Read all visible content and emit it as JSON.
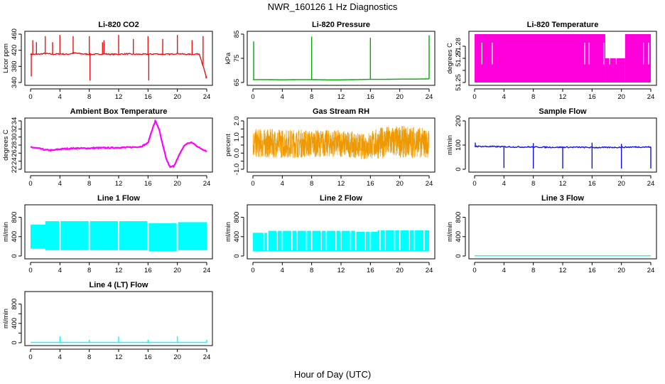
{
  "figure": {
    "title": "NWR_160126  1 Hz Diagnostics",
    "xlabel": "Hour of Day (UTC)"
  },
  "chart_data": [
    {
      "type": "line",
      "title": "Li-820 CO2",
      "ylabel": "Licor ppm",
      "color": "#ee1111",
      "xlim": [
        0,
        24
      ],
      "ylim": [
        340,
        460
      ],
      "xticks": [
        0,
        4,
        8,
        12,
        16,
        20,
        24
      ],
      "yticks": [
        340,
        380,
        420,
        460
      ],
      "series": [
        {
          "x": [
            0,
            1,
            2,
            3,
            4,
            5,
            6,
            7,
            8,
            9,
            10,
            11,
            12,
            13,
            14,
            15,
            16,
            17,
            18,
            19,
            20,
            21,
            22,
            23,
            24
          ],
          "y": [
            410,
            410,
            412,
            410,
            411,
            410,
            413,
            411,
            410,
            410,
            411,
            410,
            410,
            411,
            410,
            410,
            410,
            411,
            410,
            410,
            412,
            410,
            410,
            411,
            350
          ]
        }
      ],
      "spikes": [
        [
          0.1,
          355
        ],
        [
          0.3,
          445
        ],
        [
          0.8,
          440
        ],
        [
          2.0,
          455
        ],
        [
          3.0,
          440
        ],
        [
          4.0,
          458
        ],
        [
          5.8,
          455
        ],
        [
          8.0,
          455
        ],
        [
          8.1,
          345
        ],
        [
          9.8,
          440
        ],
        [
          10.0,
          445
        ],
        [
          12.0,
          458
        ],
        [
          14.0,
          448
        ],
        [
          16.0,
          455
        ],
        [
          16.1,
          345
        ],
        [
          18.0,
          448
        ],
        [
          20.0,
          458
        ],
        [
          22.0,
          445
        ],
        [
          23.5,
          455
        ],
        [
          23.9,
          350
        ]
      ]
    },
    {
      "type": "line",
      "title": "Li-820 Pressure",
      "ylabel": "kPa",
      "color": "#00aa00",
      "xlim": [
        0,
        24
      ],
      "ylim": [
        65,
        85
      ],
      "xticks": [
        0,
        4,
        8,
        12,
        16,
        20,
        24
      ],
      "yticks": [
        65,
        75,
        85
      ],
      "series": [
        {
          "x": [
            0,
            2,
            4,
            6,
            8,
            10,
            12,
            14,
            16,
            18,
            20,
            22,
            24
          ],
          "y": [
            66.2,
            66.2,
            66.1,
            66.2,
            66.2,
            66.1,
            66.1,
            66.2,
            66.3,
            66.3,
            66.4,
            66.4,
            66.5
          ]
        }
      ],
      "spikes": [
        [
          0.1,
          82.0
        ],
        [
          8.0,
          84.0
        ],
        [
          16.0,
          83.5
        ],
        [
          24.0,
          84.5
        ]
      ]
    },
    {
      "type": "area",
      "title": "Li-820 Temperature",
      "ylabel": "degrees C",
      "color": "#ff00dd",
      "xlim": [
        0,
        24
      ],
      "ylim": [
        51.25,
        51.29
      ],
      "xticks": [
        0,
        4,
        8,
        12,
        16,
        20,
        24
      ],
      "yticks": [
        51.25,
        51.26,
        51.27,
        51.28
      ],
      "ytick_labels": [
        "51.25",
        "",
        "51.27",
        "51.28"
      ],
      "bands": [
        [
          0,
          17.8,
          51.25,
          51.29
        ],
        [
          17.8,
          20.5,
          51.25,
          51.27
        ],
        [
          20.5,
          24,
          51.25,
          51.29
        ]
      ]
    },
    {
      "type": "line",
      "title": "Ambient Box Temperature",
      "ylabel": "degrees C",
      "color": "#ff00ff",
      "xlim": [
        0,
        24
      ],
      "ylim": [
        22,
        34
      ],
      "xticks": [
        0,
        4,
        8,
        12,
        16,
        20,
        24
      ],
      "yticks": [
        22,
        24,
        26,
        28,
        30,
        32,
        34
      ],
      "series": [
        {
          "x": [
            0,
            1,
            2,
            3,
            4,
            5,
            6,
            7,
            8,
            9,
            10,
            11,
            12,
            13,
            14,
            15,
            16,
            16.5,
            17,
            17.5,
            18,
            18.5,
            19,
            19.5,
            20,
            20.5,
            21,
            21.5,
            22,
            22.5,
            23,
            24
          ],
          "y": [
            27.5,
            27.2,
            26.8,
            26.7,
            27.0,
            27.1,
            27.2,
            27.2,
            27.2,
            27.3,
            27.3,
            27.3,
            27.4,
            27.4,
            27.5,
            27.6,
            28.5,
            31.5,
            34.0,
            32.0,
            28.0,
            24.5,
            22.5,
            22.8,
            24.5,
            26.5,
            28.0,
            28.5,
            28.6,
            28.0,
            27.3,
            26.5
          ]
        }
      ]
    },
    {
      "type": "scatter",
      "title": "Gas Stream RH",
      "ylabel": "percent",
      "color": "#ee9900",
      "xlim": [
        0,
        24
      ],
      "ylim": [
        -1.0,
        2.0
      ],
      "xticks": [
        0,
        4,
        8,
        12,
        16,
        20,
        24
      ],
      "yticks": [
        -1.0,
        -0.5,
        0.0,
        0.5,
        1.0,
        1.5,
        2.0
      ],
      "ytick_labels": [
        "-1.0",
        "",
        "0.0",
        "",
        "1.0",
        "",
        "2.0"
      ],
      "envelope": {
        "x": [
          0,
          2,
          4,
          6,
          8,
          10,
          12,
          14,
          15,
          16,
          18,
          20,
          22,
          24
        ],
        "center": [
          0.6,
          0.6,
          0.6,
          0.6,
          0.6,
          0.6,
          0.6,
          0.5,
          0.4,
          0.5,
          0.7,
          0.7,
          0.7,
          0.6
        ],
        "half_width": [
          0.9,
          0.9,
          0.9,
          0.9,
          0.85,
          0.85,
          0.85,
          0.8,
          0.8,
          0.9,
          1.0,
          1.0,
          1.0,
          0.9
        ]
      }
    },
    {
      "type": "line",
      "title": "Sample Flow",
      "ylabel": "ml/min",
      "color": "#1111ee",
      "xlim": [
        0,
        24
      ],
      "ylim": [
        0,
        200
      ],
      "xticks": [
        0,
        4,
        8,
        12,
        16,
        20,
        24
      ],
      "yticks": [
        0,
        100,
        200
      ],
      "series": [
        {
          "x": [
            0,
            2,
            4,
            6,
            8,
            10,
            12,
            14,
            16,
            18,
            20,
            22,
            24
          ],
          "y": [
            95,
            94,
            93,
            92,
            92,
            91,
            91,
            91,
            90,
            90,
            91,
            92,
            92
          ]
        }
      ],
      "spikes": [
        [
          0.1,
          110
        ],
        [
          4.0,
          5
        ],
        [
          8.0,
          3
        ],
        [
          8.0,
          108
        ],
        [
          12.0,
          3
        ],
        [
          16.0,
          3
        ],
        [
          16.0,
          110
        ],
        [
          20.0,
          3
        ],
        [
          20.0,
          105
        ],
        [
          24.0,
          3
        ]
      ]
    },
    {
      "type": "area",
      "title": "Line 1 Flow",
      "ylabel": "ml/min",
      "color": "#00ffff",
      "xlim": [
        0,
        24
      ],
      "ylim": [
        0,
        1000
      ],
      "xticks": [
        0,
        4,
        8,
        12,
        16,
        20,
        24
      ],
      "yticks": [
        0,
        400,
        800
      ],
      "bands": [
        [
          0,
          2,
          150,
          650
        ],
        [
          2,
          3.9,
          120,
          720
        ],
        [
          4.1,
          7.9,
          120,
          720
        ],
        [
          8.1,
          11.9,
          120,
          720
        ],
        [
          12.1,
          15.9,
          120,
          720
        ],
        [
          16.1,
          19.9,
          100,
          680
        ],
        [
          20.1,
          24,
          120,
          700
        ]
      ]
    },
    {
      "type": "area",
      "title": "Line 2 Flow",
      "ylabel": "ml/min",
      "color": "#00ffff",
      "xlim": [
        0,
        24
      ],
      "ylim": [
        0,
        1000
      ],
      "xticks": [
        0,
        4,
        8,
        12,
        16,
        20,
        24
      ],
      "yticks": [
        0,
        400,
        800
      ],
      "bands": [
        [
          0,
          2,
          100,
          480
        ],
        [
          2.1,
          4,
          100,
          520
        ],
        [
          4,
          14,
          100,
          520
        ],
        [
          14,
          17,
          100,
          500
        ],
        [
          17,
          24,
          100,
          530
        ]
      ],
      "gaps": [
        1.5,
        2.0,
        3.3,
        4.0,
        5.3,
        6.0,
        7.3,
        8.0,
        9.3,
        10.0,
        11.3,
        12.0,
        13.3,
        14.0,
        15.3,
        16.0,
        17.3,
        18.0,
        19.3,
        20.0,
        21.3,
        22.0,
        23.3
      ]
    },
    {
      "type": "line",
      "title": "Line 3 Flow",
      "ylabel": "ml/min",
      "color": "#00ffff",
      "xlim": [
        0,
        24
      ],
      "ylim": [
        0,
        1000
      ],
      "xticks": [
        0,
        4,
        8,
        12,
        16,
        20,
        24
      ],
      "yticks": [
        0,
        400,
        800
      ],
      "series": [
        {
          "x": [
            0,
            24
          ],
          "y": [
            5,
            5
          ]
        }
      ]
    },
    {
      "type": "line",
      "title": "Line 4 (LT) Flow",
      "ylabel": "ml/min",
      "color": "#00ffff",
      "xlim": [
        0,
        24
      ],
      "ylim": [
        0,
        1000
      ],
      "xticks": [
        0,
        4,
        8,
        12,
        16,
        20,
        24
      ],
      "yticks": [
        0,
        200,
        400,
        600,
        800
      ],
      "ytick_labels": [
        "0",
        "",
        "400",
        "",
        "800"
      ],
      "series": [
        {
          "x": [
            0,
            24
          ],
          "y": [
            8,
            8
          ]
        }
      ],
      "spikes": [
        [
          4.0,
          130
        ],
        [
          8.0,
          60
        ],
        [
          12.0,
          130
        ],
        [
          16.0,
          60
        ],
        [
          20.0,
          130
        ],
        [
          24.0,
          60
        ]
      ]
    }
  ]
}
